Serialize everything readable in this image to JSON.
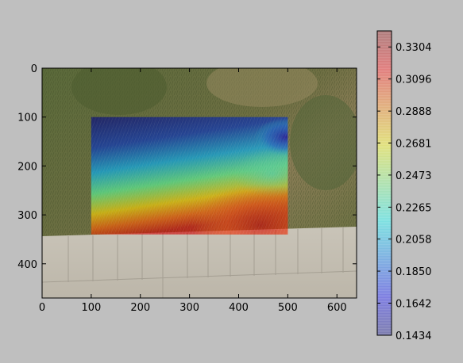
{
  "figure": {
    "background": "#bfbfbf"
  },
  "chart_data": {
    "type": "heatmap",
    "title": "",
    "xlabel": "",
    "ylabel": "",
    "description_of_background": "aerial photo of grass lawn and paved sidewalk",
    "xlim": [
      0,
      640
    ],
    "ylim": [
      470,
      0
    ],
    "x_ticks": [
      0,
      100,
      200,
      300,
      400,
      500,
      600
    ],
    "y_ticks": [
      0,
      100,
      200,
      300,
      400
    ],
    "overlay_extent": {
      "x": [
        100,
        500
      ],
      "y": [
        100,
        340
      ]
    },
    "colormap": "jet",
    "alpha": 0.5,
    "colorbar": {
      "range": [
        0.1434,
        0.3408
      ],
      "ticks": [
        "0.1434",
        "0.1642",
        "0.1850",
        "0.2058",
        "0.2265",
        "0.2473",
        "0.2681",
        "0.2888",
        "0.3096",
        "0.3304"
      ]
    },
    "field_samples": {
      "x": [
        100,
        200,
        300,
        400,
        480,
        500
      ],
      "y": [
        100,
        180,
        260,
        340
      ],
      "values": [
        [
          0.158,
          0.152,
          0.166,
          0.192,
          0.222,
          0.146
        ],
        [
          0.176,
          0.184,
          0.198,
          0.216,
          0.245,
          0.168
        ],
        [
          0.205,
          0.228,
          0.248,
          0.272,
          0.305,
          0.24
        ],
        [
          0.25,
          0.28,
          0.292,
          0.31,
          0.325,
          0.3
        ]
      ]
    }
  }
}
